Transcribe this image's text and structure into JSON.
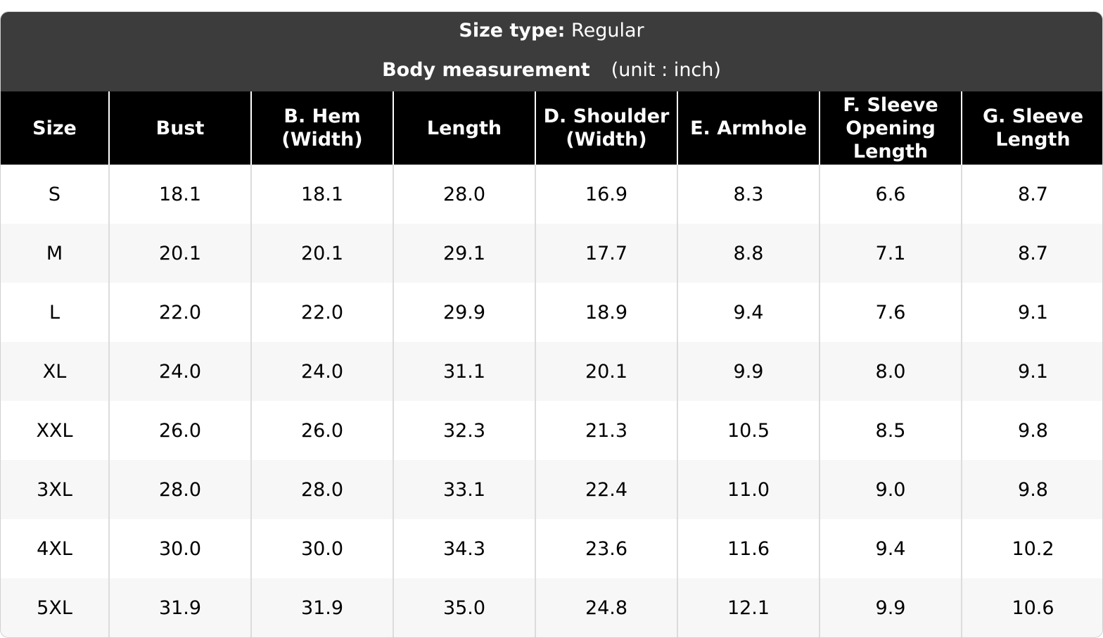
{
  "header": {
    "size_type_label": "Size type:",
    "size_type_value": "Regular",
    "measurement_label": "Body measurement",
    "unit_text": "(unit : inch)"
  },
  "table": {
    "columns": [
      "Size",
      "Bust",
      "B. Hem (Width)",
      "Length",
      "D. Shoulder (Width)",
      "E. Armhole",
      "F. Sleeve Opening Length",
      "G. Sleeve Length"
    ],
    "rows": [
      [
        "S",
        "18.1",
        "18.1",
        "28.0",
        "16.9",
        "8.3",
        "6.6",
        "8.7"
      ],
      [
        "M",
        "20.1",
        "20.1",
        "29.1",
        "17.7",
        "8.8",
        "7.1",
        "8.7"
      ],
      [
        "L",
        "22.0",
        "22.0",
        "29.9",
        "18.9",
        "9.4",
        "7.6",
        "9.1"
      ],
      [
        "XL",
        "24.0",
        "24.0",
        "31.1",
        "20.1",
        "9.9",
        "8.0",
        "9.1"
      ],
      [
        "XXL",
        "26.0",
        "26.0",
        "32.3",
        "21.3",
        "10.5",
        "8.5",
        "9.8"
      ],
      [
        "3XL",
        "28.0",
        "28.0",
        "33.1",
        "22.4",
        "11.0",
        "9.0",
        "9.8"
      ],
      [
        "4XL",
        "30.0",
        "30.0",
        "34.3",
        "23.6",
        "11.6",
        "9.4",
        "10.2"
      ],
      [
        "5XL",
        "31.9",
        "31.9",
        "35.0",
        "24.8",
        "12.1",
        "9.9",
        "10.6"
      ]
    ]
  },
  "colors": {
    "title_bar": "#3c3c3c",
    "header_row": "#000000",
    "header_text": "#ffffff",
    "row_alt": "#f7f7f7",
    "row_base": "#ffffff"
  }
}
